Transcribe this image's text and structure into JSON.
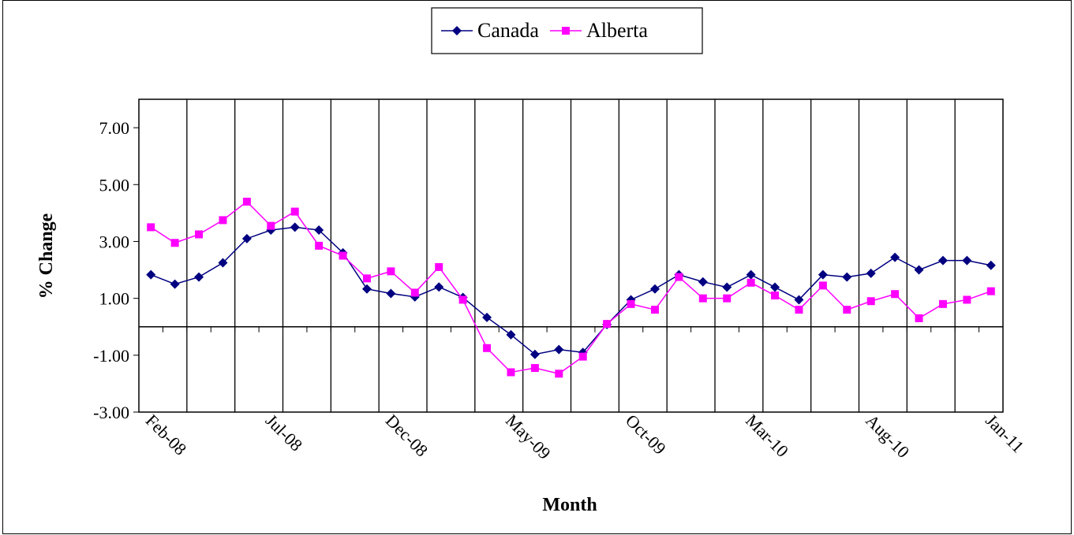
{
  "chart_data": {
    "type": "line",
    "x_label": "Month",
    "y_label": "% Change",
    "categories": [
      "Feb-08",
      null,
      null,
      null,
      null,
      "Jul-08",
      null,
      null,
      null,
      null,
      "Dec-08",
      null,
      null,
      null,
      null,
      "May-09",
      null,
      null,
      null,
      null,
      "Oct-09",
      null,
      null,
      null,
      null,
      "Mar-10",
      null,
      null,
      null,
      null,
      "Aug-10",
      null,
      null,
      null,
      null,
      "Jan-11"
    ],
    "series": [
      {
        "name": "Canada",
        "color": "#000080",
        "marker": "diamond",
        "values": [
          1.83,
          1.5,
          1.75,
          2.25,
          3.1,
          3.4,
          3.5,
          3.4,
          2.6,
          1.33,
          1.17,
          1.05,
          1.4,
          1.03,
          0.33,
          -0.28,
          -0.97,
          -0.8,
          -0.9,
          0.08,
          0.95,
          1.33,
          1.83,
          1.58,
          1.39,
          1.83,
          1.39,
          0.95,
          1.83,
          1.75,
          1.88,
          2.44,
          2.0,
          2.33,
          2.33,
          2.16
        ]
      },
      {
        "name": "Alberta",
        "color": "#ff00ff",
        "marker": "square",
        "values": [
          3.5,
          2.95,
          3.25,
          3.75,
          4.4,
          3.55,
          4.05,
          2.85,
          2.5,
          1.7,
          1.95,
          1.2,
          2.1,
          0.95,
          -0.75,
          -1.6,
          -1.45,
          -1.65,
          -1.05,
          0.1,
          0.8,
          0.6,
          1.75,
          1.0,
          1.0,
          1.55,
          1.1,
          0.6,
          1.45,
          0.6,
          0.9,
          1.15,
          0.3,
          0.8,
          0.95,
          1.25
        ]
      }
    ],
    "ylim": [
      -3,
      8
    ],
    "yticks": [
      {
        "value": -3,
        "label": "-3.00"
      },
      {
        "value": -1,
        "label": "-1.00"
      },
      {
        "value": 1,
        "label": "1.00"
      },
      {
        "value": 3,
        "label": "3.00"
      },
      {
        "value": 5,
        "label": "5.00"
      },
      {
        "value": 7,
        "label": "7.00"
      }
    ],
    "legend": "top"
  }
}
